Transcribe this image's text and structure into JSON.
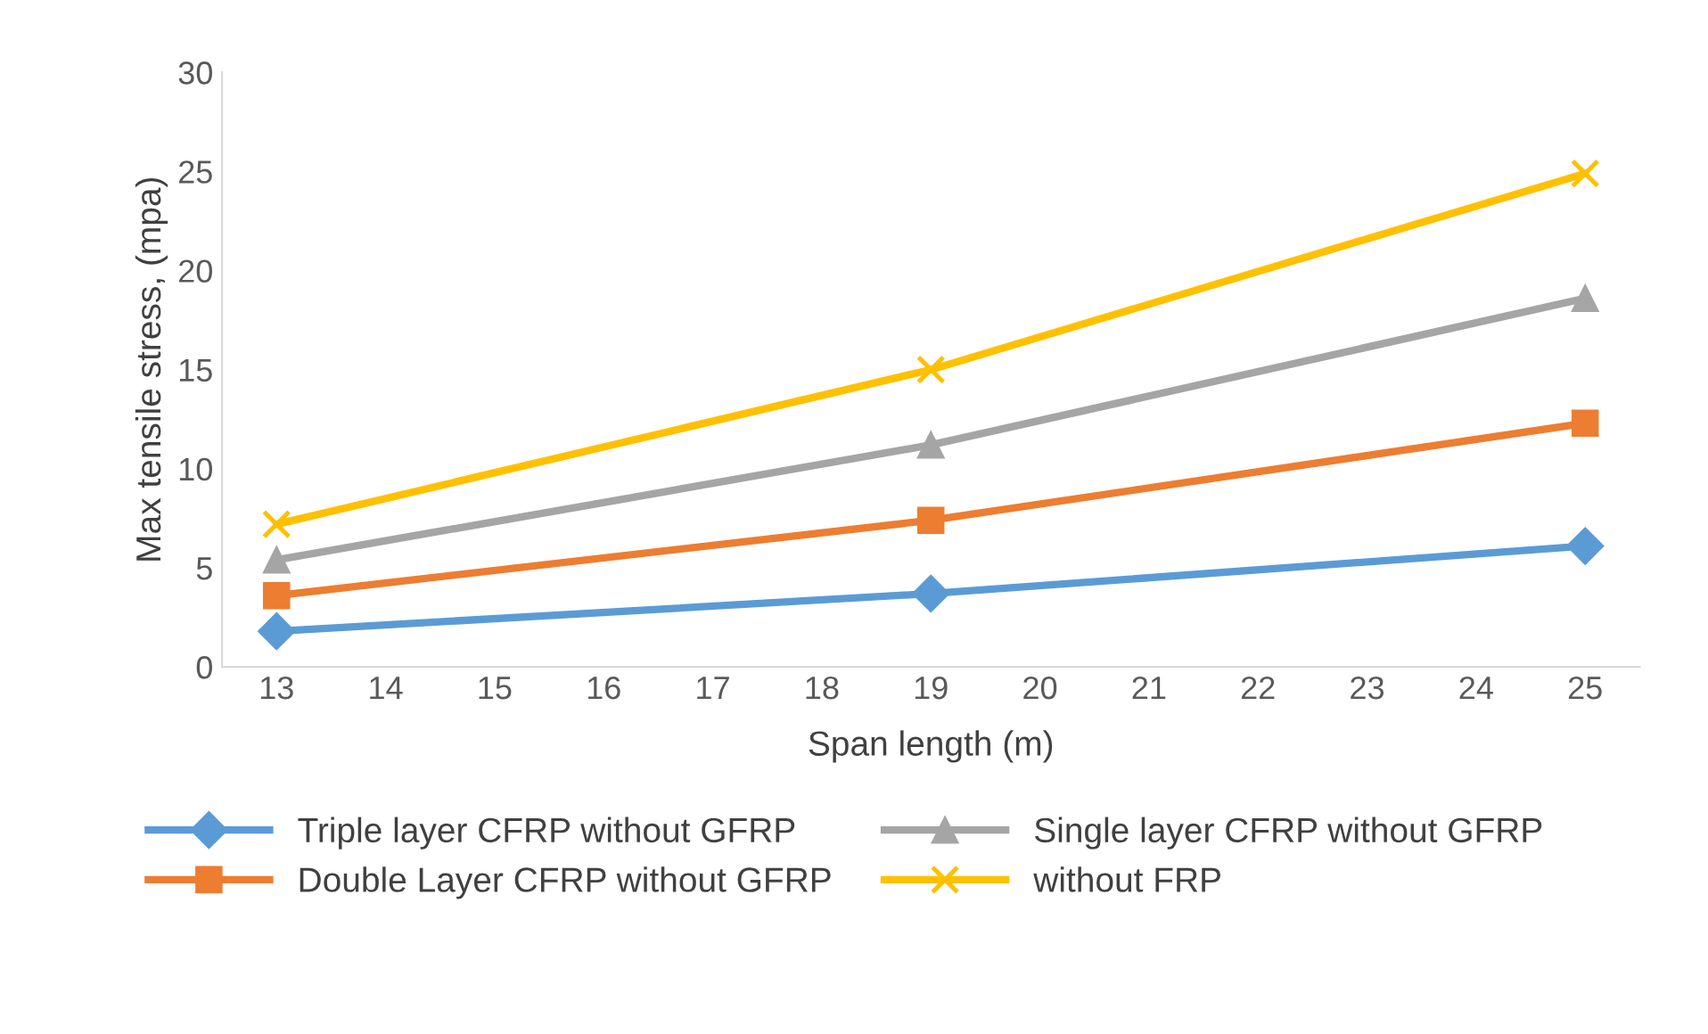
{
  "chart_data": {
    "type": "line",
    "xlabel": "Span length (m)",
    "ylabel": "Max tensile stress, (mpa)",
    "x": [
      13,
      19,
      25
    ],
    "xlim": [
      12.5,
      25.5
    ],
    "xticks": [
      13,
      14,
      15,
      16,
      17,
      18,
      19,
      20,
      21,
      22,
      23,
      24,
      25
    ],
    "ylim": [
      0,
      30
    ],
    "yticks": [
      0,
      5,
      10,
      15,
      20,
      25,
      30
    ],
    "grid": false,
    "legend": "bottom",
    "line_style": "solid",
    "series": [
      {
        "name": "Triple layer CFRP without GFRP",
        "color": "#5b9bd5",
        "marker": "diamond",
        "values": [
          1.8,
          3.7,
          6.1
        ]
      },
      {
        "name": "Double Layer CFRP without GFRP",
        "color": "#ed7d31",
        "marker": "square",
        "values": [
          3.6,
          7.4,
          12.3
        ]
      },
      {
        "name": "Single layer CFRP without GFRP",
        "color": "#a5a5a5",
        "marker": "triangle",
        "values": [
          5.4,
          11.2,
          18.6
        ]
      },
      {
        "name": "without FRP",
        "color": "#ffc000",
        "marker": "cross",
        "values": [
          7.2,
          15.0,
          24.9
        ]
      }
    ]
  }
}
